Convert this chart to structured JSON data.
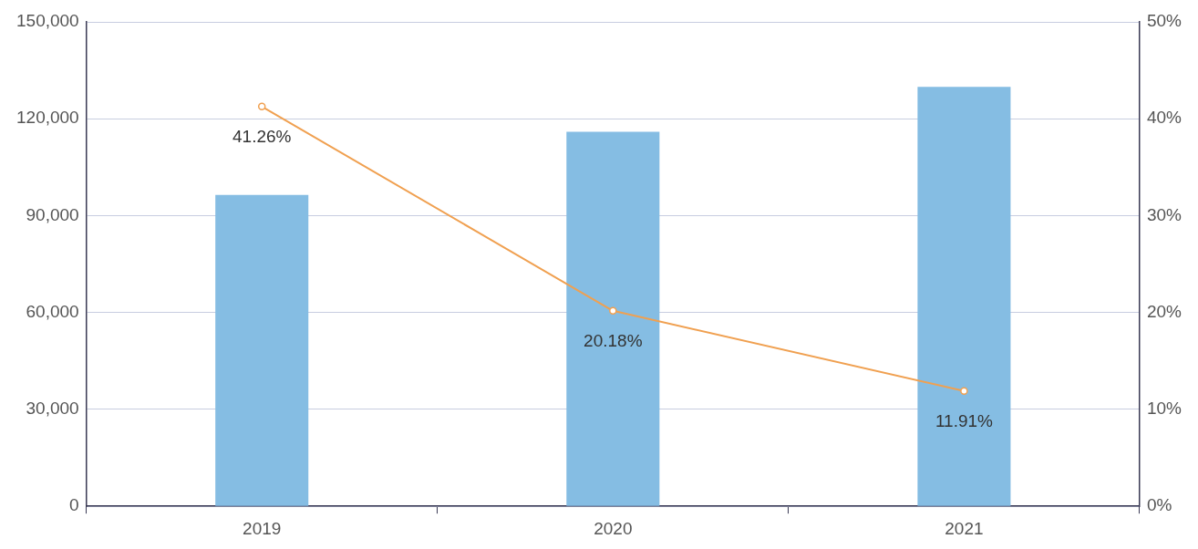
{
  "chart_data": {
    "type": "bar",
    "categories": [
      "2019",
      "2020",
      "2021"
    ],
    "series": [
      {
        "color": "#85bde3",
        "values": [
          96400,
          116000,
          129900
        ]
      },
      {
        "type": "line",
        "axis": "y2",
        "color": "#f0a050",
        "values": [
          41.26,
          20.18,
          11.91
        ],
        "value_labels": [
          "41.26%",
          "20.18%",
          "11.91%"
        ]
      }
    ],
    "ylim": [
      0,
      150000
    ],
    "yticks": [
      {
        "value": 0,
        "label": "0"
      },
      {
        "value": 30000,
        "label": "30,000"
      },
      {
        "value": 60000,
        "label": "60,000"
      },
      {
        "value": 90000,
        "label": "90,000"
      },
      {
        "value": 120000,
        "label": "120,000"
      },
      {
        "value": 150000,
        "label": "150,000"
      }
    ],
    "y2lim": [
      0,
      50
    ],
    "y2ticks": [
      {
        "value": 0,
        "label": "0%"
      },
      {
        "value": 10,
        "label": "10%"
      },
      {
        "value": 20,
        "label": "20%"
      },
      {
        "value": 30,
        "label": "30%"
      },
      {
        "value": 40,
        "label": "40%"
      },
      {
        "value": 50,
        "label": "50%"
      }
    ],
    "grid": "y",
    "legend": false,
    "marker": "circle",
    "line_style": "solid"
  }
}
